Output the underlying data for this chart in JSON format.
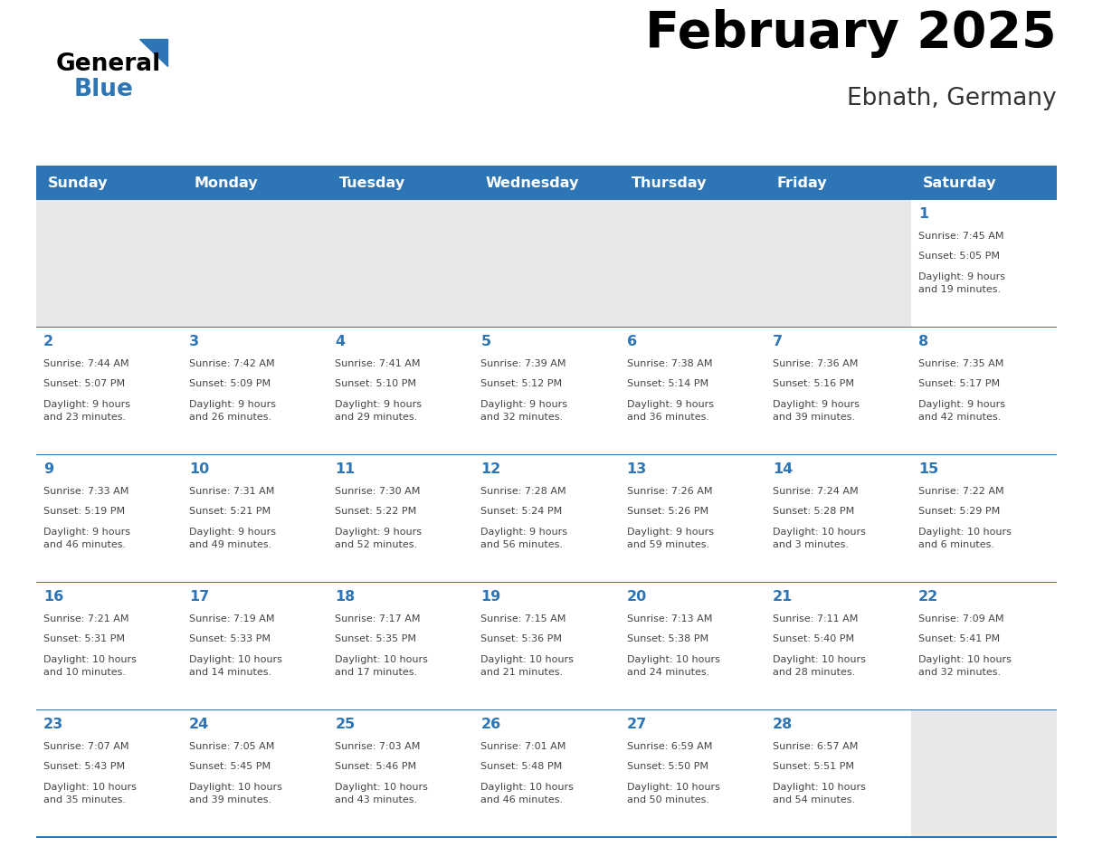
{
  "title": "February 2025",
  "subtitle": "Ebnath, Germany",
  "header_bg": "#2E75B6",
  "header_text_color": "#FFFFFF",
  "days_of_week": [
    "Sunday",
    "Monday",
    "Tuesday",
    "Wednesday",
    "Thursday",
    "Friday",
    "Saturday"
  ],
  "cell_bg_empty": "#E8E8E8",
  "cell_bg_white": "#FFFFFF",
  "separator_color": "#2E75B6",
  "text_color": "#444444",
  "day_number_color": "#2E75B6",
  "calendar_data": [
    [
      null,
      null,
      null,
      null,
      null,
      null,
      {
        "day": "1",
        "sunrise": "7:45 AM",
        "sunset": "5:05 PM",
        "daylight": "9 hours\nand 19 minutes."
      }
    ],
    [
      {
        "day": "2",
        "sunrise": "7:44 AM",
        "sunset": "5:07 PM",
        "daylight": "9 hours\nand 23 minutes."
      },
      {
        "day": "3",
        "sunrise": "7:42 AM",
        "sunset": "5:09 PM",
        "daylight": "9 hours\nand 26 minutes."
      },
      {
        "day": "4",
        "sunrise": "7:41 AM",
        "sunset": "5:10 PM",
        "daylight": "9 hours\nand 29 minutes."
      },
      {
        "day": "5",
        "sunrise": "7:39 AM",
        "sunset": "5:12 PM",
        "daylight": "9 hours\nand 32 minutes."
      },
      {
        "day": "6",
        "sunrise": "7:38 AM",
        "sunset": "5:14 PM",
        "daylight": "9 hours\nand 36 minutes."
      },
      {
        "day": "7",
        "sunrise": "7:36 AM",
        "sunset": "5:16 PM",
        "daylight": "9 hours\nand 39 minutes."
      },
      {
        "day": "8",
        "sunrise": "7:35 AM",
        "sunset": "5:17 PM",
        "daylight": "9 hours\nand 42 minutes."
      }
    ],
    [
      {
        "day": "9",
        "sunrise": "7:33 AM",
        "sunset": "5:19 PM",
        "daylight": "9 hours\nand 46 minutes."
      },
      {
        "day": "10",
        "sunrise": "7:31 AM",
        "sunset": "5:21 PM",
        "daylight": "9 hours\nand 49 minutes."
      },
      {
        "day": "11",
        "sunrise": "7:30 AM",
        "sunset": "5:22 PM",
        "daylight": "9 hours\nand 52 minutes."
      },
      {
        "day": "12",
        "sunrise": "7:28 AM",
        "sunset": "5:24 PM",
        "daylight": "9 hours\nand 56 minutes."
      },
      {
        "day": "13",
        "sunrise": "7:26 AM",
        "sunset": "5:26 PM",
        "daylight": "9 hours\nand 59 minutes."
      },
      {
        "day": "14",
        "sunrise": "7:24 AM",
        "sunset": "5:28 PM",
        "daylight": "10 hours\nand 3 minutes."
      },
      {
        "day": "15",
        "sunrise": "7:22 AM",
        "sunset": "5:29 PM",
        "daylight": "10 hours\nand 6 minutes."
      }
    ],
    [
      {
        "day": "16",
        "sunrise": "7:21 AM",
        "sunset": "5:31 PM",
        "daylight": "10 hours\nand 10 minutes."
      },
      {
        "day": "17",
        "sunrise": "7:19 AM",
        "sunset": "5:33 PM",
        "daylight": "10 hours\nand 14 minutes."
      },
      {
        "day": "18",
        "sunrise": "7:17 AM",
        "sunset": "5:35 PM",
        "daylight": "10 hours\nand 17 minutes."
      },
      {
        "day": "19",
        "sunrise": "7:15 AM",
        "sunset": "5:36 PM",
        "daylight": "10 hours\nand 21 minutes."
      },
      {
        "day": "20",
        "sunrise": "7:13 AM",
        "sunset": "5:38 PM",
        "daylight": "10 hours\nand 24 minutes."
      },
      {
        "day": "21",
        "sunrise": "7:11 AM",
        "sunset": "5:40 PM",
        "daylight": "10 hours\nand 28 minutes."
      },
      {
        "day": "22",
        "sunrise": "7:09 AM",
        "sunset": "5:41 PM",
        "daylight": "10 hours\nand 32 minutes."
      }
    ],
    [
      {
        "day": "23",
        "sunrise": "7:07 AM",
        "sunset": "5:43 PM",
        "daylight": "10 hours\nand 35 minutes."
      },
      {
        "day": "24",
        "sunrise": "7:05 AM",
        "sunset": "5:45 PM",
        "daylight": "10 hours\nand 39 minutes."
      },
      {
        "day": "25",
        "sunrise": "7:03 AM",
        "sunset": "5:46 PM",
        "daylight": "10 hours\nand 43 minutes."
      },
      {
        "day": "26",
        "sunrise": "7:01 AM",
        "sunset": "5:48 PM",
        "daylight": "10 hours\nand 46 minutes."
      },
      {
        "day": "27",
        "sunrise": "6:59 AM",
        "sunset": "5:50 PM",
        "daylight": "10 hours\nand 50 minutes."
      },
      {
        "day": "28",
        "sunrise": "6:57 AM",
        "sunset": "5:51 PM",
        "daylight": "10 hours\nand 54 minutes."
      },
      null
    ]
  ],
  "logo_triangle_color": "#2E75B6",
  "n_cols": 7,
  "n_rows": 5
}
